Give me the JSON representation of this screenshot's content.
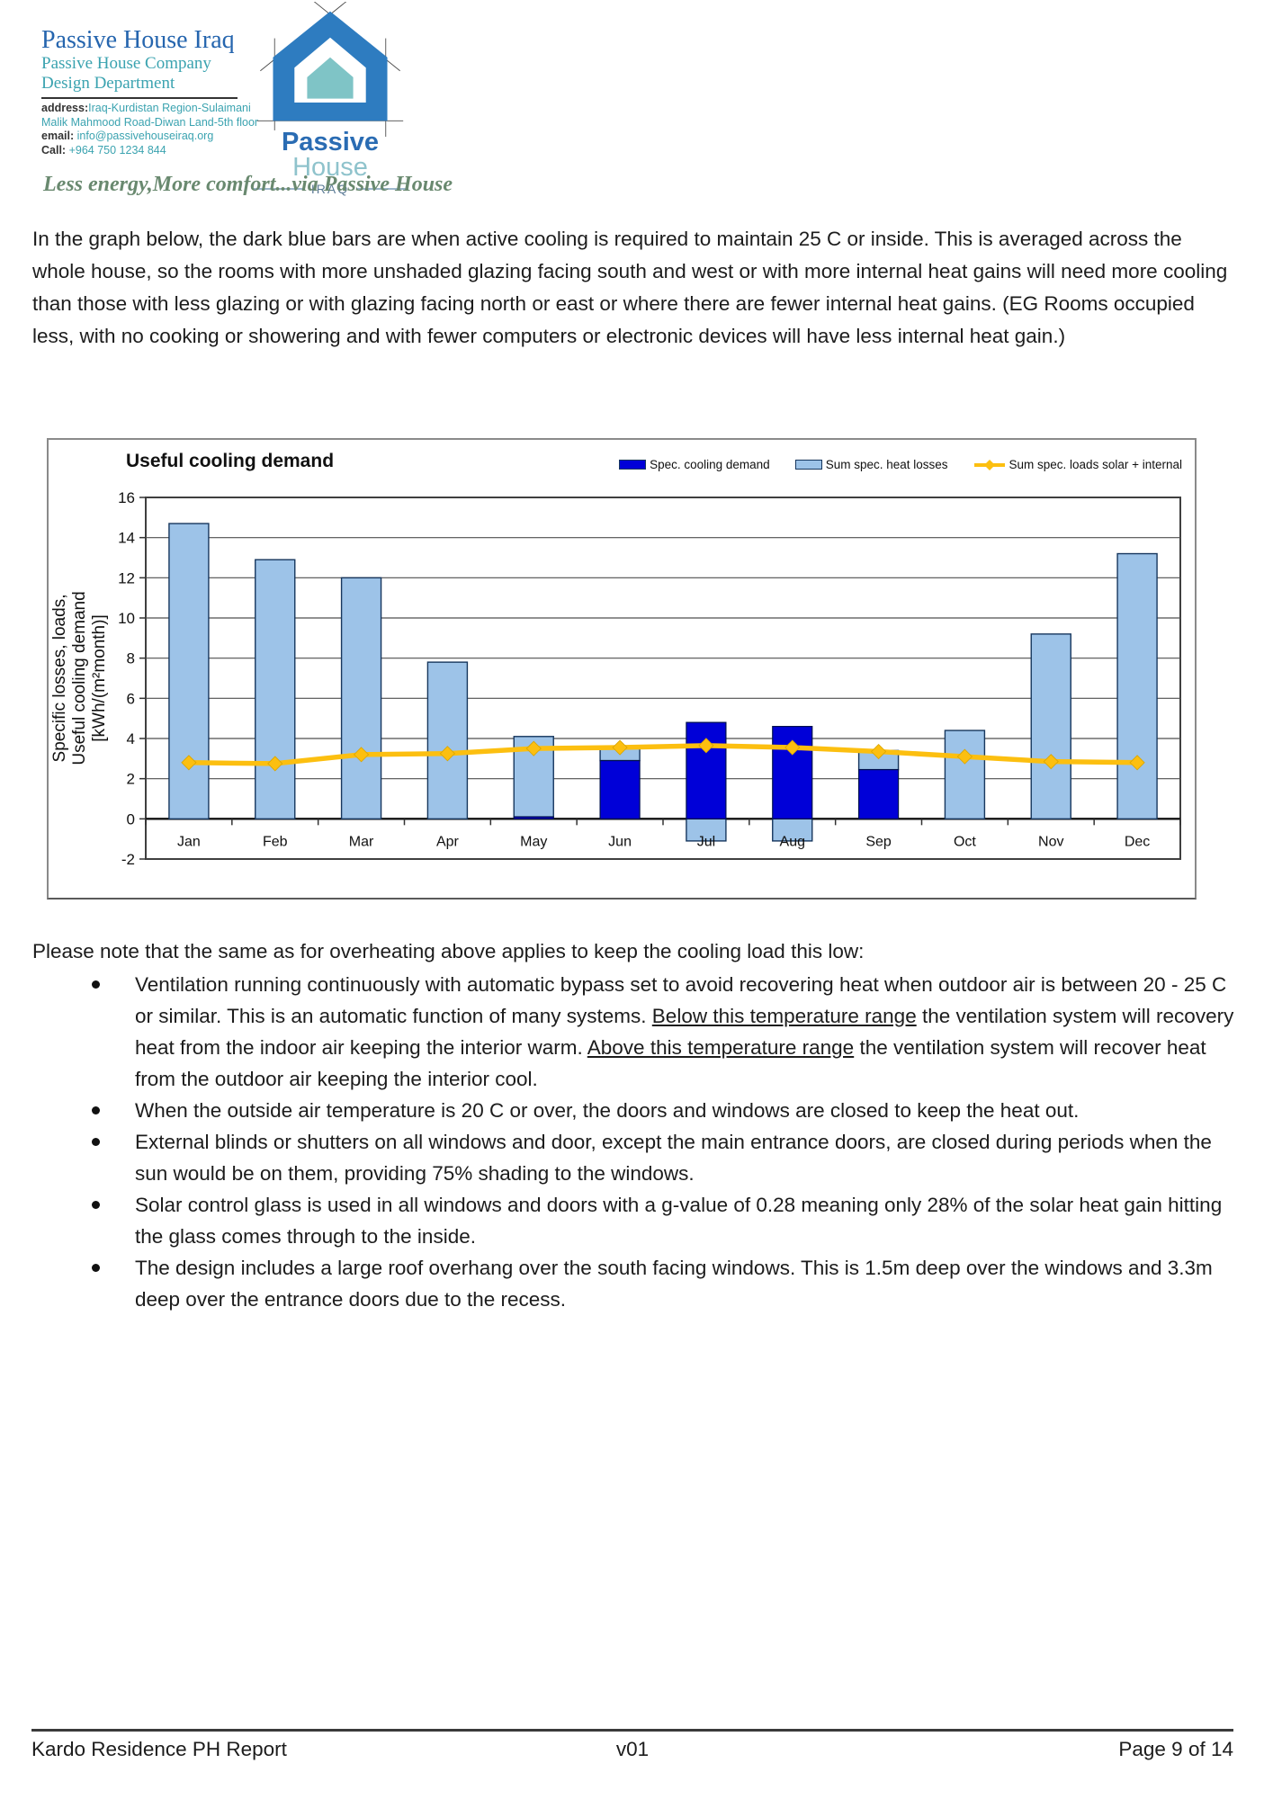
{
  "header": {
    "company_title": "Passive House Iraq",
    "company_subtitle1": "Passive House Company",
    "company_subtitle2": "Design Department",
    "address_label": "address:",
    "address_value": "Iraq-Kurdistan Region-Sulaimani",
    "address_line2": "Malik Mahmood Road-Diwan Land-5th floor",
    "email_label": "email:",
    "email_value": "info@passivehouseiraq.org",
    "call_label": "Call:",
    "call_value": "+964 750 1234 844",
    "logo_word_primary": "Passive",
    "logo_word_secondary": "House",
    "logo_country": "IRAQ",
    "tagline": "Less energy,More comfort...via Passive House"
  },
  "intro_paragraph": "In the graph below, the dark blue bars are when active cooling is required to maintain 25 C or inside. This is averaged across the whole house, so the rooms with more unshaded glazing facing south and west or with more internal heat gains will need more cooling than those with less glazing or with glazing facing north or east or where there are fewer internal heat gains. (EG Rooms occupied less, with no cooking or showering and with fewer computers or electronic devices will have less internal heat gain.)",
  "chart_data": {
    "type": "bar",
    "title": "Useful cooling demand",
    "categories": [
      "Jan",
      "Feb",
      "Mar",
      "Apr",
      "May",
      "Jun",
      "Jul",
      "Aug",
      "Sep",
      "Oct",
      "Nov",
      "Dec"
    ],
    "series": [
      {
        "name": "Spec. cooling demand",
        "type": "bar",
        "color": "#0000d8",
        "values": [
          0,
          0,
          0,
          0,
          0.1,
          2.9,
          4.8,
          4.6,
          2.45,
          0,
          0,
          0
        ]
      },
      {
        "name": "Sum spec. heat losses",
        "type": "bar",
        "color": "#9dc3e8",
        "stacking": "stacked on top of cooling demand; negative values drawn below the zero axis",
        "values": [
          14.7,
          12.9,
          12.0,
          7.8,
          4.0,
          0.65,
          -1.1,
          -1.1,
          0.95,
          4.4,
          9.2,
          13.2
        ]
      },
      {
        "name": "Sum spec. loads solar + internal",
        "type": "line",
        "color": "#fcbf10",
        "values": [
          2.8,
          2.75,
          3.2,
          3.25,
          3.5,
          3.55,
          3.65,
          3.55,
          3.35,
          3.1,
          2.85,
          2.8
        ]
      }
    ],
    "ylabel_lines": [
      "Specific losses, loads,",
      "Useful cooling demand",
      "[kWh/(m²month)]"
    ],
    "yticks": [
      16,
      14,
      12,
      10,
      8,
      6,
      4,
      2,
      0,
      -2
    ],
    "ylim": [
      -2,
      16
    ],
    "grid": true,
    "legend_position": "top-right"
  },
  "notes": {
    "heading": "Please note that the same as for overheating above applies to keep the cooling load this low:",
    "bullets": [
      {
        "segments": [
          {
            "text": "Ventilation running continuously with automatic bypass set to avoid recovering heat when outdoor air is between 20 - 25 C or similar. This is an automatic function of many systems. "
          },
          {
            "text": "Below this temperature range",
            "underline": true
          },
          {
            "text": " the ventilation system will recovery heat from the indoor air keeping the interior warm. "
          },
          {
            "text": "Above this temperature range",
            "underline": true
          },
          {
            "text": " the ventilation system will recover heat from the outdoor air keeping the interior cool."
          }
        ]
      },
      {
        "segments": [
          {
            "text": "When the outside air temperature is 20 C or over, the doors and windows are closed to keep the heat out."
          }
        ]
      },
      {
        "segments": [
          {
            "text": "External blinds or shutters on all windows and door, except the main entrance doors, are closed during periods when the sun would be on them, providing 75% shading to the windows."
          }
        ]
      },
      {
        "segments": [
          {
            "text": "Solar control glass is used in all windows and doors with a g-value of 0.28 meaning only 28% of the solar heat gain hitting the glass comes through to the inside."
          }
        ]
      },
      {
        "segments": [
          {
            "text": "The design includes a large roof overhang over the south facing windows. This is 1.5m deep over the windows and 3.3m deep over the entrance doors due to the recess."
          }
        ]
      }
    ]
  },
  "footer": {
    "left": "Kardo Residence PH Report",
    "center": "v01",
    "right": "Page 9 of 14"
  },
  "colors": {
    "header_blue": "#2565ae",
    "header_teal": "#3ba3b0",
    "tagline_green": "#69896f",
    "bar_dark_blue": "#0000d8",
    "bar_light_blue": "#9dc3e8",
    "line_yellow": "#fcbf10"
  }
}
